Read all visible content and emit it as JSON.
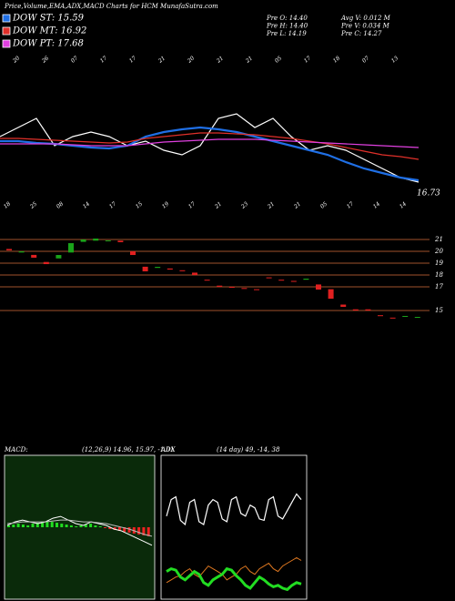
{
  "header": {
    "title": "Price,Volume,EMA,ADX,MACD Charts for HCM MunafaSutra.com",
    "stats": [
      "Pre  O: 14.40",
      "Avg V: 0.012  M",
      "Pre  H: 14.40",
      "Pre  V: 0.034  M",
      "Pre  L: 14.19",
      "Pre  C: 14.27"
    ]
  },
  "chart_data": [
    {
      "type": "line",
      "date_labels": [
        "20",
        "26",
        "07",
        "17",
        "17",
        "21",
        "20",
        "21",
        "21",
        "05",
        "17",
        "18",
        "07",
        "13"
      ],
      "ylim": [
        16.5,
        19.5
      ],
      "end_label": "16.73",
      "series": [
        {
          "color": "#ffffff",
          "values": [
            17.7,
            17.9,
            18.1,
            17.5,
            17.7,
            17.8,
            17.7,
            17.5,
            17.6,
            17.4,
            17.3,
            17.5,
            18.1,
            18.2,
            17.9,
            18.1,
            17.7,
            17.4,
            17.5,
            17.4,
            17.2,
            17.0,
            16.8,
            16.7
          ]
        },
        {
          "name": "DOW ST: 15.59",
          "color": "#1f6fe5",
          "values": [
            17.6,
            17.6,
            17.56,
            17.54,
            17.5,
            17.46,
            17.44,
            17.5,
            17.7,
            17.8,
            17.86,
            17.9,
            17.86,
            17.8,
            17.7,
            17.6,
            17.5,
            17.4,
            17.3,
            17.14,
            17.0,
            16.9,
            16.8,
            16.74
          ]
        },
        {
          "name": "DOW MT: 16.92",
          "color": "#e0302a",
          "values": [
            17.66,
            17.66,
            17.64,
            17.62,
            17.6,
            17.58,
            17.56,
            17.58,
            17.66,
            17.7,
            17.74,
            17.78,
            17.78,
            17.76,
            17.74,
            17.7,
            17.66,
            17.6,
            17.54,
            17.46,
            17.38,
            17.3,
            17.26,
            17.2
          ]
        },
        {
          "name": "DOW PT: 17.68",
          "color": "#e040e0",
          "values": [
            17.54,
            17.54,
            17.54,
            17.54,
            17.52,
            17.5,
            17.5,
            17.5,
            17.54,
            17.58,
            17.6,
            17.62,
            17.64,
            17.64,
            17.64,
            17.62,
            17.6,
            17.58,
            17.56,
            17.54,
            17.52,
            17.5,
            17.48,
            17.46
          ]
        }
      ]
    },
    {
      "type": "candlestick",
      "date_labels": [
        "18",
        "25",
        "08",
        "14",
        "17",
        "15",
        "19",
        "17",
        "21",
        "23",
        "21",
        "21",
        "05",
        "17",
        "14",
        "14"
      ],
      "open": [
        20.2,
        19.9,
        19.7,
        19.1,
        19.4,
        19.9,
        20.8,
        20.9,
        20.92,
        20.9,
        20.0,
        18.7,
        18.6,
        18.55,
        18.4,
        18.2,
        17.6,
        17.1,
        17.0,
        16.9,
        16.8,
        17.8,
        17.6,
        17.5,
        17.6,
        17.2,
        16.8,
        15.5,
        15.1,
        15.1,
        14.6,
        14.4,
        14.5,
        14.4
      ],
      "close": [
        20.08,
        20.0,
        19.46,
        18.92,
        19.69,
        20.69,
        21.0,
        21.08,
        20.92,
        20.77,
        19.69,
        18.31,
        18.69,
        18.46,
        18.38,
        18.0,
        17.54,
        17.0,
        16.92,
        16.85,
        16.77,
        17.77,
        17.54,
        17.46,
        17.69,
        16.77,
        16.0,
        15.31,
        15.0,
        15.0,
        14.54,
        14.38,
        14.54,
        14.46
      ],
      "up_color": "#1aa31a",
      "down_color": "#e02020",
      "ylim": [
        14,
        22
      ],
      "yticks": [
        21,
        20,
        19,
        18,
        17,
        15
      ],
      "grid": true,
      "grid_color": "#a0522d"
    },
    {
      "type": "macd",
      "title": "MACD:",
      "subtitle": "(12,26,9) 14.96, 15.97, -1.01",
      "ylim": [
        -4,
        4
      ],
      "series": [
        {
          "color": "#ffffff",
          "values": [
            0.1,
            0.3,
            0.4,
            0.3,
            0.2,
            0.3,
            0.5,
            0.6,
            0.4,
            0.2,
            0.1,
            0.3,
            0.2,
            0.1,
            -0.1,
            -0.2,
            -0.4,
            -0.6,
            -0.8,
            -1.0
          ]
        },
        {
          "color": "#bbbbbb",
          "values": [
            0.2,
            0.25,
            0.3,
            0.3,
            0.3,
            0.3,
            0.35,
            0.4,
            0.4,
            0.35,
            0.3,
            0.3,
            0.25,
            0.2,
            0.1,
            0,
            -0.1,
            -0.25,
            -0.4,
            -0.5
          ]
        }
      ],
      "histogram": [
        0.1,
        0.15,
        0.2,
        0.15,
        0.1,
        0.2,
        0.25,
        0.3,
        0.35,
        0.3,
        0.25,
        0.2,
        0.15,
        0.1,
        0.05,
        0.1,
        0.15,
        0.2,
        0.1,
        0.05,
        -0.05,
        -0.1,
        -0.15,
        -0.2,
        -0.25,
        -0.3,
        -0.35,
        -0.4,
        -0.45,
        -0.5
      ],
      "pos_color": "#22dd22",
      "neg_color": "#ee2222"
    },
    {
      "type": "adx",
      "title": "ADX",
      "subtitle": "(14 day) 49, -14, 38",
      "ylim": [
        0,
        100
      ],
      "series": [
        {
          "color": "#ffffff",
          "width": 1.2,
          "values": [
            58,
            70,
            72,
            55,
            52,
            68,
            70,
            54,
            52,
            66,
            70,
            68,
            56,
            54,
            70,
            72,
            60,
            58,
            66,
            64,
            56,
            55,
            70,
            72,
            58,
            56,
            62,
            68,
            74,
            70
          ]
        },
        {
          "color": "#e07820",
          "width": 1,
          "values": [
            10,
            12,
            14,
            15,
            18,
            20,
            16,
            14,
            18,
            22,
            20,
            18,
            16,
            12,
            14,
            16,
            20,
            22,
            18,
            16,
            20,
            22,
            24,
            20,
            18,
            22,
            24,
            26,
            28,
            26
          ]
        },
        {
          "color": "#22dd22",
          "width": 3,
          "values": [
            18,
            20,
            19,
            14,
            12,
            15,
            18,
            16,
            10,
            8,
            12,
            14,
            16,
            20,
            19,
            15,
            12,
            8,
            6,
            10,
            14,
            12,
            9,
            7,
            8,
            6,
            5,
            8,
            10,
            9
          ]
        }
      ]
    }
  ]
}
